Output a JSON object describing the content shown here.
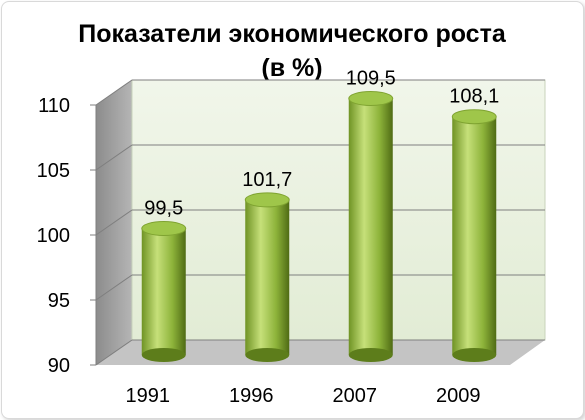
{
  "chart_data": {
    "type": "bar",
    "title": "Показатели экономического роста",
    "subtitle": "(в %)",
    "categories": [
      "1991",
      "1996",
      "2007",
      "2009"
    ],
    "series": [
      {
        "values": [
          99.5,
          101.7,
          109.5,
          108.1
        ]
      }
    ],
    "data_labels": [
      "99,5",
      "101,7",
      "109,5",
      "108,1"
    ],
    "y_ticks": [
      "90",
      "95",
      "100",
      "105",
      "110"
    ],
    "ylim": [
      90,
      110
    ],
    "grid": true,
    "legend": "none",
    "style": "3d-cylinder",
    "colors": {
      "bar_light": "#c6e07a",
      "bar_mid": "#8db33a",
      "bar_dark": "#4f6b14",
      "wall": "#eaf1df",
      "floor": "#bfbfbf"
    }
  }
}
